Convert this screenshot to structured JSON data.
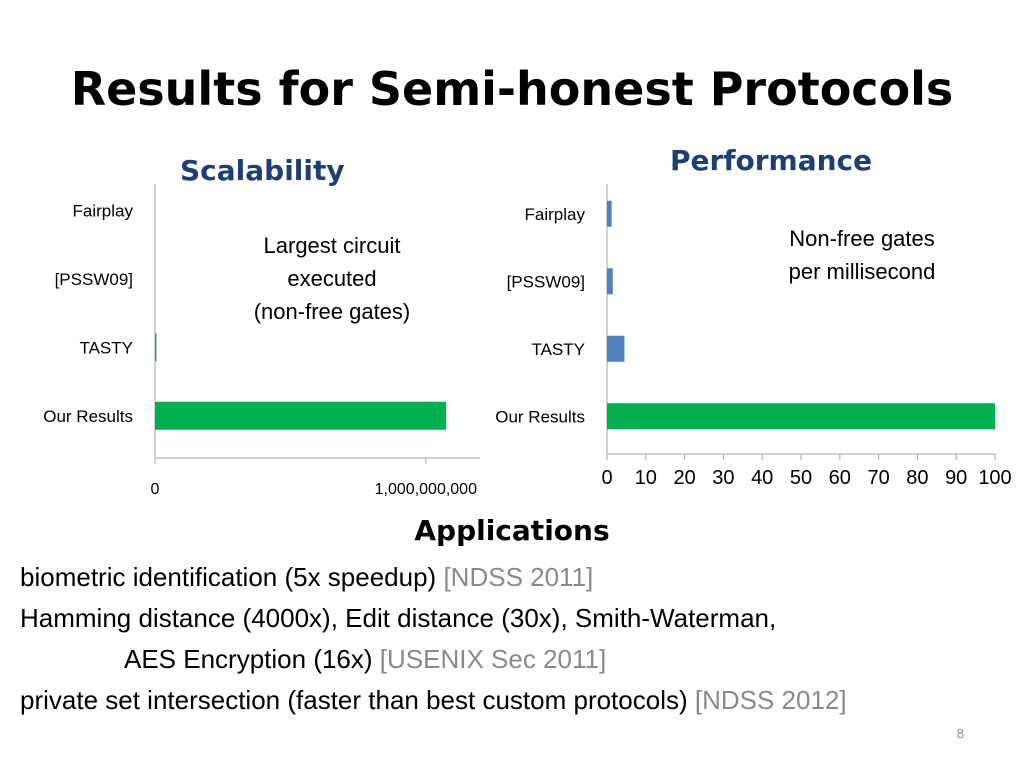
{
  "slide": {
    "title": "Results for Semi-honest Protocols",
    "number": "8"
  },
  "chart_data": [
    {
      "type": "bar",
      "orientation": "horizontal",
      "title": "Scalability",
      "annotation": "Largest circuit executed (non-free gates)",
      "categories": [
        "Fairplay",
        "[PSSW09]",
        "TASTY",
        "Our Results"
      ],
      "values": [
        0,
        0,
        1000000,
        1075000000
      ],
      "colors": [
        "#4f81bd",
        "#4f81bd",
        "#4f81bd",
        "#00b050"
      ],
      "xlim": [
        0,
        1200000000
      ],
      "xticks": [
        0,
        1000000000
      ],
      "xtick_labels": [
        "0",
        "1,000,000,000"
      ]
    },
    {
      "type": "bar",
      "orientation": "horizontal",
      "title": "Performance",
      "annotation": "Non-free gates per millisecond",
      "categories": [
        "Fairplay",
        "[PSSW09]",
        "TASTY",
        "Our Results"
      ],
      "values": [
        1.2,
        1.5,
        4.5,
        100
      ],
      "colors": [
        "#4f81bd",
        "#4f81bd",
        "#4f81bd",
        "#00b050"
      ],
      "xlim": [
        0,
        100
      ],
      "xticks": [
        0,
        10,
        20,
        30,
        40,
        50,
        60,
        70,
        80,
        90,
        100
      ],
      "xtick_labels": [
        "0",
        "10",
        "20",
        "30",
        "40",
        "50",
        "60",
        "70",
        "80",
        "90",
        "100"
      ]
    }
  ],
  "annotations": {
    "scalability_lines": [
      "Largest circuit",
      "executed",
      "(non-free gates)"
    ],
    "performance_lines": [
      "Non-free gates",
      "per millisecond"
    ]
  },
  "applications": {
    "heading": "Applications",
    "lines": [
      {
        "text": "biometric identification (5x speedup) ",
        "cite": "[NDSS 2011]"
      },
      {
        "text": "Hamming distance (4000x), Edit distance (30x), Smith-Waterman,",
        "cite": ""
      },
      {
        "text": "AES Encryption (16x) ",
        "cite": "[USENIX Sec 2011]"
      },
      {
        "text": "private set intersection (faster than best custom protocols) ",
        "cite": "[NDSS 2012]"
      }
    ]
  }
}
